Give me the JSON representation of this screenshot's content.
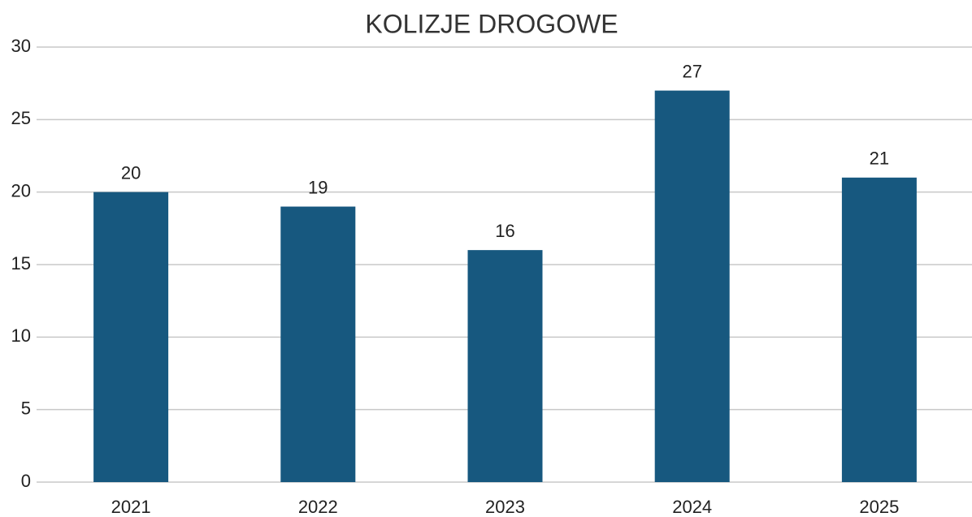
{
  "chart_data": {
    "type": "bar",
    "title": "KOLIZJE DROGOWE",
    "categories": [
      "2021",
      "2022",
      "2023",
      "2024",
      "2025"
    ],
    "values": [
      20,
      19,
      16,
      27,
      21
    ],
    "color": "#17587f",
    "ylim": [
      0,
      30
    ],
    "yticks": [
      0,
      5,
      10,
      15,
      20,
      25,
      30
    ],
    "grid": true
  }
}
